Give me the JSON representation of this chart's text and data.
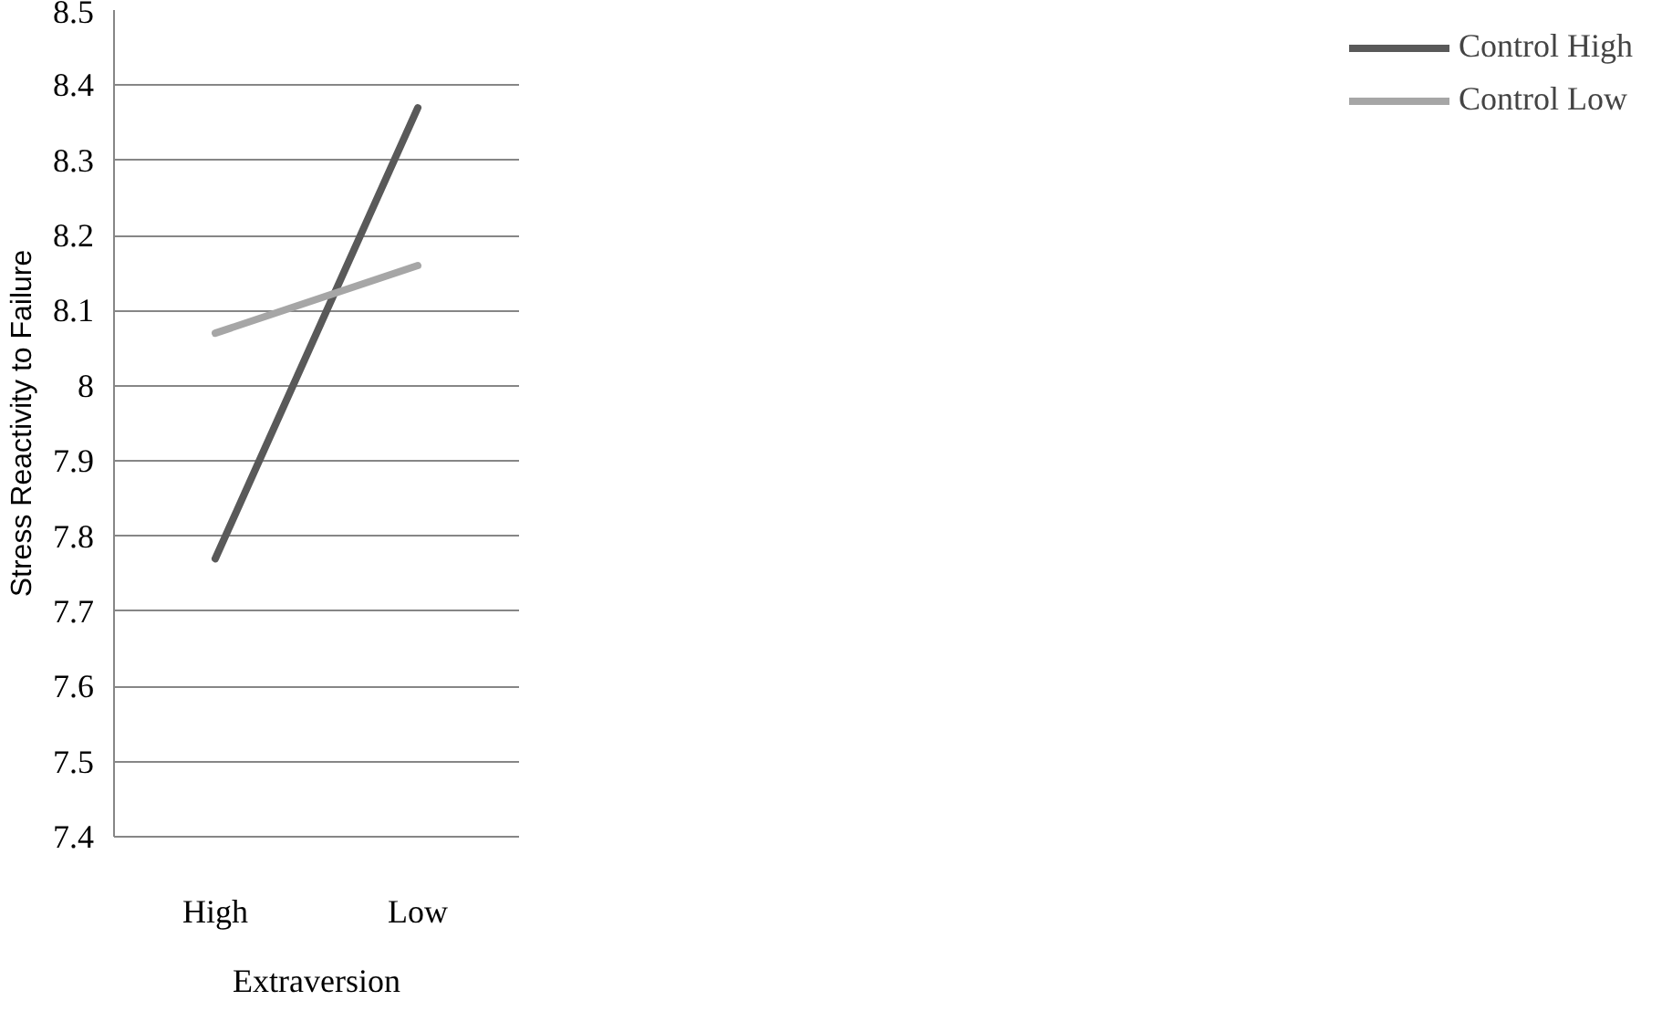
{
  "chart_data": {
    "type": "line",
    "xlabel": "Extraversion",
    "ylabel": "Stress Reactivity to Failure",
    "categories": [
      "High",
      "Low"
    ],
    "series": [
      {
        "name": "Control High",
        "color": "#595959",
        "values": [
          7.77,
          8.37
        ]
      },
      {
        "name": "Control Low",
        "color": "#a6a6a6",
        "values": [
          8.07,
          8.16
        ]
      }
    ],
    "ylim": [
      7.4,
      8.5
    ],
    "yticks": [
      7.4,
      7.5,
      7.6,
      7.7,
      7.8,
      7.9,
      8,
      8.1,
      8.2,
      8.3,
      8.4,
      8.5
    ],
    "grid": "y",
    "legend": "right",
    "marker": "none",
    "line_style": "solid"
  }
}
